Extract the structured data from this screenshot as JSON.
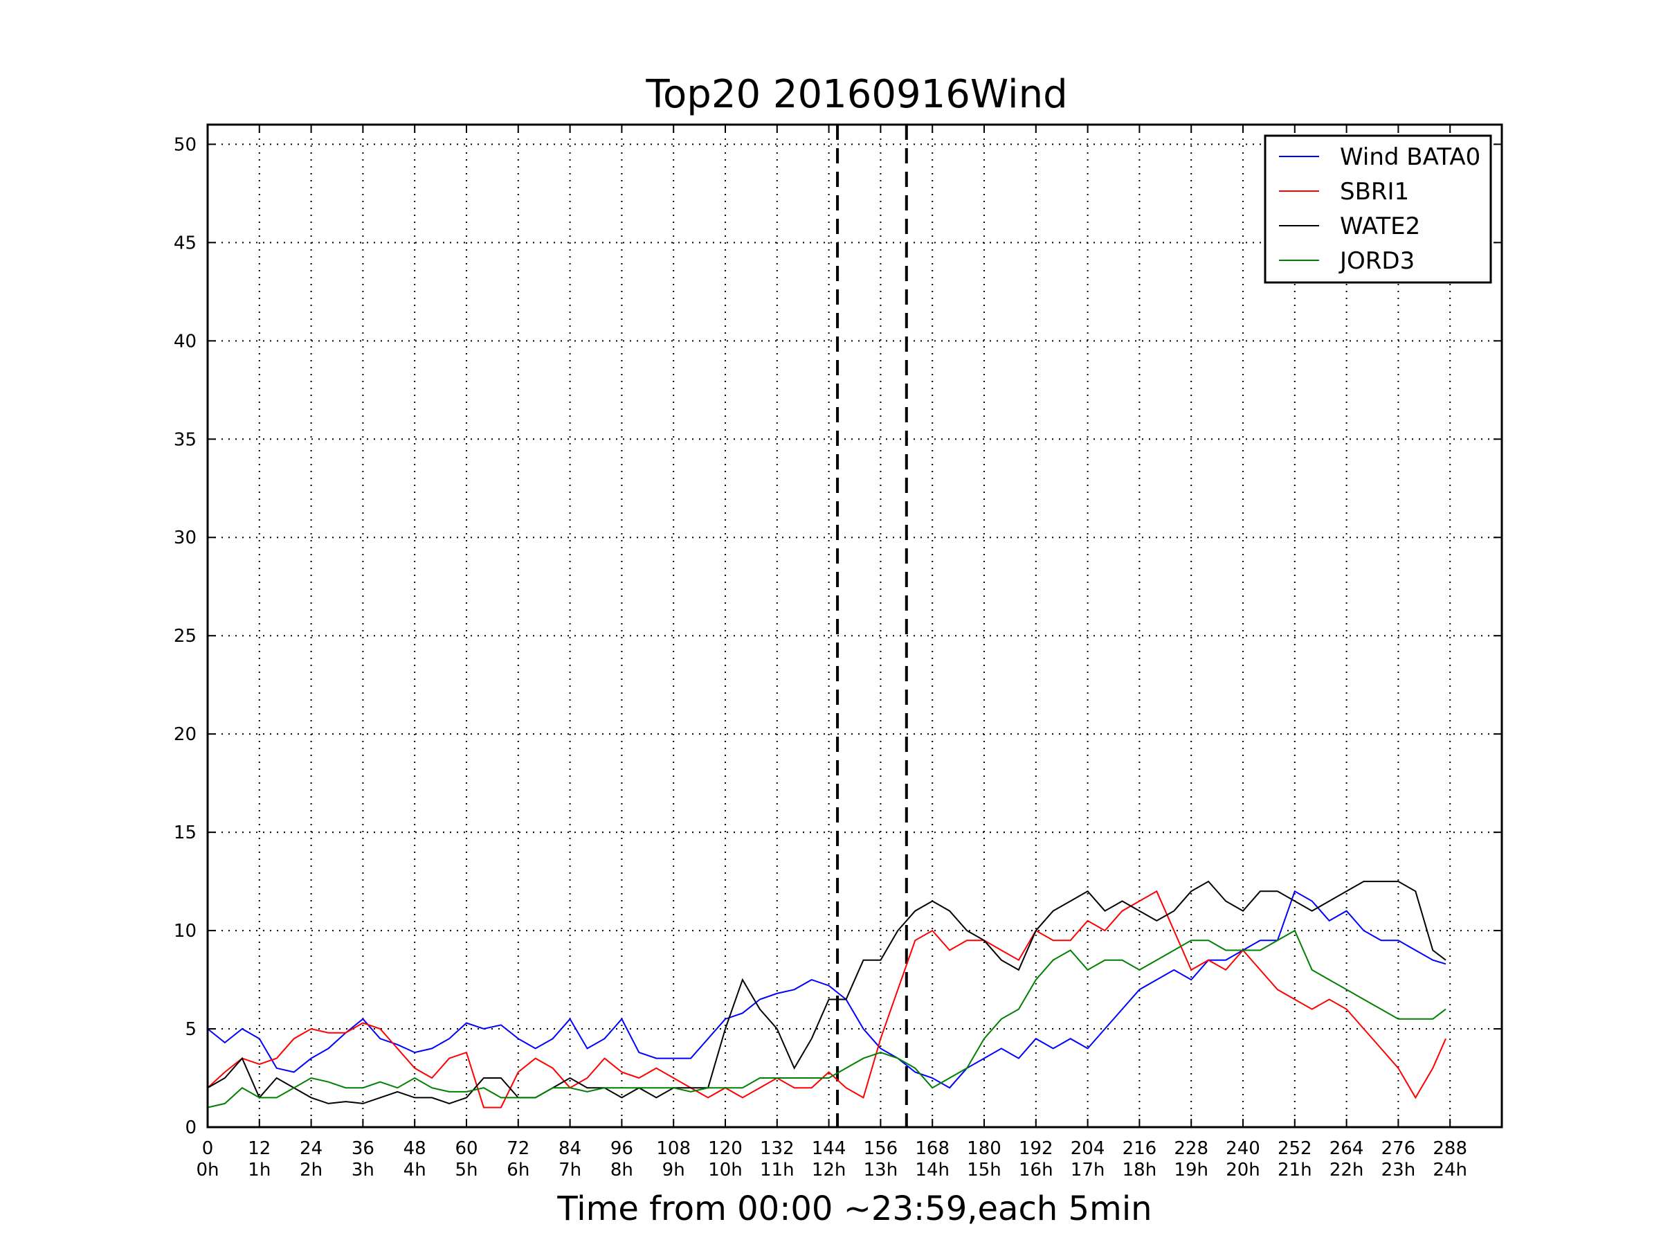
{
  "chart_data": {
    "type": "line",
    "title": "Top20 20160916Wind",
    "xlabel": "Time from 00:00 ~23:59,each 5min",
    "ylabel": "",
    "xlim": [
      0,
      300
    ],
    "ylim": [
      0,
      51
    ],
    "grid": true,
    "legend_position": "top-right",
    "x_ticks": [
      0,
      12,
      24,
      36,
      48,
      60,
      72,
      84,
      96,
      108,
      120,
      132,
      144,
      156,
      168,
      180,
      192,
      204,
      216,
      228,
      240,
      252,
      264,
      276,
      288
    ],
    "x_tick_labels": [
      "0",
      "12",
      "24",
      "36",
      "48",
      "60",
      "72",
      "84",
      "96",
      "108",
      "120",
      "132",
      "144",
      "156",
      "168",
      "180",
      "192",
      "204",
      "216",
      "228",
      "240",
      "252",
      "264",
      "276",
      "288"
    ],
    "x_tick_sublabels": [
      "0h",
      "1h",
      "2h",
      "3h",
      "4h",
      "5h",
      "6h",
      "7h",
      "8h",
      "9h",
      "10h",
      "11h",
      "12h",
      "13h",
      "14h",
      "15h",
      "16h",
      "17h",
      "18h",
      "19h",
      "20h",
      "21h",
      "22h",
      "23h",
      "24h"
    ],
    "y_ticks": [
      0,
      5,
      10,
      15,
      20,
      25,
      30,
      35,
      40,
      45,
      50
    ],
    "y_tick_labels": [
      "0",
      "5",
      "10",
      "15",
      "20",
      "25",
      "30",
      "35",
      "40",
      "45",
      "50"
    ],
    "vlines": [
      146,
      162
    ],
    "series": [
      {
        "name": "Wind BATA0",
        "color": "#0000ff",
        "x": [
          0,
          4,
          8,
          12,
          16,
          20,
          24,
          28,
          32,
          36,
          40,
          44,
          48,
          52,
          56,
          60,
          64,
          68,
          72,
          76,
          80,
          84,
          88,
          92,
          96,
          100,
          104,
          108,
          112,
          116,
          120,
          124,
          128,
          132,
          136,
          140,
          144,
          148,
          152,
          156,
          160,
          164,
          168,
          172,
          176,
          180,
          184,
          188,
          192,
          196,
          200,
          204,
          208,
          212,
          216,
          220,
          224,
          228,
          232,
          236,
          240,
          244,
          248,
          252,
          256,
          260,
          264,
          268,
          272,
          276,
          280,
          284,
          287
        ],
        "y": [
          5.0,
          4.3,
          5.0,
          4.5,
          3.0,
          2.8,
          3.5,
          4.0,
          4.8,
          5.5,
          4.5,
          4.2,
          3.8,
          4.0,
          4.5,
          5.3,
          5.0,
          5.2,
          4.5,
          4.0,
          4.5,
          5.5,
          4.0,
          4.5,
          5.5,
          3.8,
          3.5,
          3.5,
          3.5,
          4.5,
          5.5,
          5.8,
          6.5,
          6.8,
          7.0,
          7.5,
          7.2,
          6.5,
          5.0,
          4.0,
          3.5,
          2.8,
          2.5,
          2.0,
          3.0,
          3.5,
          4.0,
          3.5,
          4.5,
          4.0,
          4.5,
          4.0,
          5.0,
          6.0,
          7.0,
          7.5,
          8.0,
          7.5,
          8.5,
          8.5,
          9.0,
          9.5,
          9.5,
          12.0,
          11.5,
          10.5,
          11.0,
          10.0,
          9.5,
          9.5,
          9.0,
          8.5,
          8.3
        ]
      },
      {
        "name": "SBRI1",
        "color": "#ff0000",
        "x": [
          0,
          4,
          8,
          12,
          16,
          20,
          24,
          28,
          32,
          36,
          40,
          44,
          48,
          52,
          56,
          60,
          64,
          68,
          72,
          76,
          80,
          84,
          88,
          92,
          96,
          100,
          104,
          108,
          112,
          116,
          120,
          124,
          128,
          132,
          136,
          140,
          144,
          148,
          152,
          156,
          160,
          164,
          168,
          172,
          176,
          180,
          184,
          188,
          192,
          196,
          200,
          204,
          208,
          212,
          216,
          220,
          224,
          228,
          232,
          236,
          240,
          244,
          248,
          252,
          256,
          260,
          264,
          268,
          272,
          276,
          280,
          284,
          287
        ],
        "y": [
          2.0,
          2.8,
          3.5,
          3.2,
          3.5,
          4.5,
          5.0,
          4.8,
          4.8,
          5.3,
          5.0,
          4.0,
          3.0,
          2.5,
          3.5,
          3.8,
          1.0,
          1.0,
          2.8,
          3.5,
          3.0,
          2.0,
          2.5,
          3.5,
          2.8,
          2.5,
          3.0,
          2.5,
          2.0,
          1.5,
          2.0,
          1.5,
          2.0,
          2.5,
          2.0,
          2.0,
          2.8,
          2.0,
          1.5,
          4.5,
          7.0,
          9.5,
          10.0,
          9.0,
          9.5,
          9.5,
          9.0,
          8.5,
          10.0,
          9.5,
          9.5,
          10.5,
          10.0,
          11.0,
          11.5,
          12.0,
          10.0,
          8.0,
          8.5,
          8.0,
          9.0,
          8.0,
          7.0,
          6.5,
          6.0,
          6.5,
          6.0,
          5.0,
          4.0,
          3.0,
          1.5,
          3.0,
          4.5
        ]
      },
      {
        "name": "WATE2",
        "color": "#000000",
        "x": [
          0,
          4,
          8,
          12,
          16,
          20,
          24,
          28,
          32,
          36,
          40,
          44,
          48,
          52,
          56,
          60,
          64,
          68,
          72,
          76,
          80,
          84,
          88,
          92,
          96,
          100,
          104,
          108,
          112,
          116,
          120,
          124,
          128,
          132,
          136,
          140,
          144,
          148,
          152,
          156,
          160,
          164,
          168,
          172,
          176,
          180,
          184,
          188,
          192,
          196,
          200,
          204,
          208,
          212,
          216,
          220,
          224,
          228,
          232,
          236,
          240,
          244,
          248,
          252,
          256,
          260,
          264,
          268,
          272,
          276,
          280,
          284,
          287
        ],
        "y": [
          2.0,
          2.5,
          3.5,
          1.5,
          2.5,
          2.0,
          1.5,
          1.2,
          1.3,
          1.2,
          1.5,
          1.8,
          1.5,
          1.5,
          1.2,
          1.5,
          2.5,
          2.5,
          1.5,
          1.5,
          2.0,
          2.5,
          2.0,
          2.0,
          1.5,
          2.0,
          1.5,
          2.0,
          2.0,
          2.0,
          5.0,
          7.5,
          6.0,
          5.0,
          3.0,
          4.5,
          6.5,
          6.5,
          8.5,
          8.5,
          10.0,
          11.0,
          11.5,
          11.0,
          10.0,
          9.5,
          8.5,
          8.0,
          10.0,
          11.0,
          11.5,
          12.0,
          11.0,
          11.5,
          11.0,
          10.5,
          11.0,
          12.0,
          12.5,
          11.5,
          11.0,
          12.0,
          12.0,
          11.5,
          11.0,
          11.5,
          12.0,
          12.5,
          12.5,
          12.5,
          12.0,
          9.0,
          8.5
        ]
      },
      {
        "name": "JORD3",
        "color": "#008000",
        "x": [
          0,
          4,
          8,
          12,
          16,
          20,
          24,
          28,
          32,
          36,
          40,
          44,
          48,
          52,
          56,
          60,
          64,
          68,
          72,
          76,
          80,
          84,
          88,
          92,
          96,
          100,
          104,
          108,
          112,
          116,
          120,
          124,
          128,
          132,
          136,
          140,
          144,
          148,
          152,
          156,
          160,
          164,
          168,
          172,
          176,
          180,
          184,
          188,
          192,
          196,
          200,
          204,
          208,
          212,
          216,
          220,
          224,
          228,
          232,
          236,
          240,
          244,
          248,
          252,
          256,
          260,
          264,
          268,
          272,
          276,
          280,
          284,
          287
        ],
        "y": [
          1.0,
          1.2,
          2.0,
          1.5,
          1.5,
          2.0,
          2.5,
          2.3,
          2.0,
          2.0,
          2.3,
          2.0,
          2.5,
          2.0,
          1.8,
          1.8,
          2.0,
          1.5,
          1.5,
          1.5,
          2.0,
          2.0,
          1.8,
          2.0,
          2.0,
          2.0,
          2.0,
          2.0,
          1.8,
          2.0,
          2.0,
          2.0,
          2.5,
          2.5,
          2.5,
          2.5,
          2.5,
          3.0,
          3.5,
          3.8,
          3.5,
          3.0,
          2.0,
          2.5,
          3.0,
          4.5,
          5.5,
          6.0,
          7.5,
          8.5,
          9.0,
          8.0,
          8.5,
          8.5,
          8.0,
          8.5,
          9.0,
          9.5,
          9.5,
          9.0,
          9.0,
          9.0,
          9.5,
          10.0,
          8.0,
          7.5,
          7.0,
          6.5,
          6.0,
          5.5,
          5.5,
          5.5,
          6.0
        ]
      }
    ]
  }
}
